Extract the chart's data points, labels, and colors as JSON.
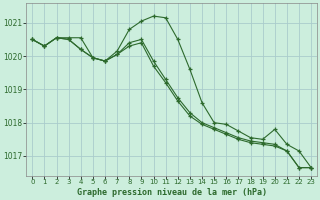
{
  "title": "Graphe pression niveau de la mer (hPa)",
  "bg_color": "#cceedd",
  "grid_color": "#aacccc",
  "line_color": "#2d6a2d",
  "marker_color": "#2d6a2d",
  "xlim": [
    -0.5,
    23.5
  ],
  "ylim": [
    1016.4,
    1021.6
  ],
  "yticks": [
    1017,
    1018,
    1019,
    1020,
    1021
  ],
  "xticks": [
    0,
    1,
    2,
    3,
    4,
    5,
    6,
    7,
    8,
    9,
    10,
    11,
    12,
    13,
    14,
    15,
    16,
    17,
    18,
    19,
    20,
    21,
    22,
    23
  ],
  "series": [
    [
      1020.5,
      1020.3,
      1020.55,
      1020.55,
      1020.55,
      1019.95,
      1019.85,
      1020.15,
      1020.8,
      1021.05,
      1021.2,
      1021.15,
      1020.5,
      1019.6,
      1018.6,
      1018.0,
      1017.95,
      1017.75,
      1017.55,
      1017.5,
      1017.8,
      1017.35,
      1017.15,
      1016.65
    ],
    [
      1020.5,
      1020.3,
      1020.55,
      1020.5,
      1020.2,
      1019.95,
      1019.85,
      1020.05,
      1020.4,
      1020.5,
      1019.85,
      1019.3,
      1018.75,
      1018.3,
      1018.0,
      1017.85,
      1017.7,
      1017.55,
      1017.45,
      1017.4,
      1017.35,
      1017.15,
      1016.65,
      1016.65
    ],
    [
      1020.5,
      1020.3,
      1020.55,
      1020.5,
      1020.2,
      1019.95,
      1019.85,
      1020.05,
      1020.3,
      1020.4,
      1019.7,
      1019.2,
      1018.65,
      1018.2,
      1017.95,
      1017.8,
      1017.65,
      1017.5,
      1017.4,
      1017.35,
      1017.3,
      1017.15,
      1016.65,
      1016.65
    ]
  ]
}
